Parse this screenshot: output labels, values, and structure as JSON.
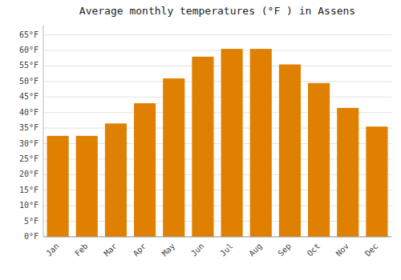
{
  "chart_data": {
    "type": "bar",
    "title": "Average monthly temperatures (°F ) in Assens",
    "categories": [
      "Jan",
      "Feb",
      "Mar",
      "Apr",
      "May",
      "Jun",
      "Jul",
      "Aug",
      "Sep",
      "Oct",
      "Nov",
      "Dec"
    ],
    "values": [
      32.5,
      32.5,
      36.5,
      43.0,
      51.0,
      58.0,
      60.5,
      60.5,
      55.5,
      49.5,
      41.5,
      35.5
    ],
    "color": "#E08000",
    "ylim": [
      0,
      68
    ],
    "yticks": [
      {
        "value": 0,
        "label": "0°F"
      },
      {
        "value": 5,
        "label": "5°F"
      },
      {
        "value": 10,
        "label": "10°F"
      },
      {
        "value": 15,
        "label": "15°F"
      },
      {
        "value": 20,
        "label": "20°F"
      },
      {
        "value": 25,
        "label": "25°F"
      },
      {
        "value": 30,
        "label": "30°F"
      },
      {
        "value": 35,
        "label": "35°F"
      },
      {
        "value": 40,
        "label": "40°F"
      },
      {
        "value": 45,
        "label": "45°F"
      },
      {
        "value": 50,
        "label": "50°F"
      },
      {
        "value": 55,
        "label": "55°F"
      },
      {
        "value": 60,
        "label": "60°F"
      },
      {
        "value": 65,
        "label": "65°F"
      }
    ],
    "grid": true
  }
}
